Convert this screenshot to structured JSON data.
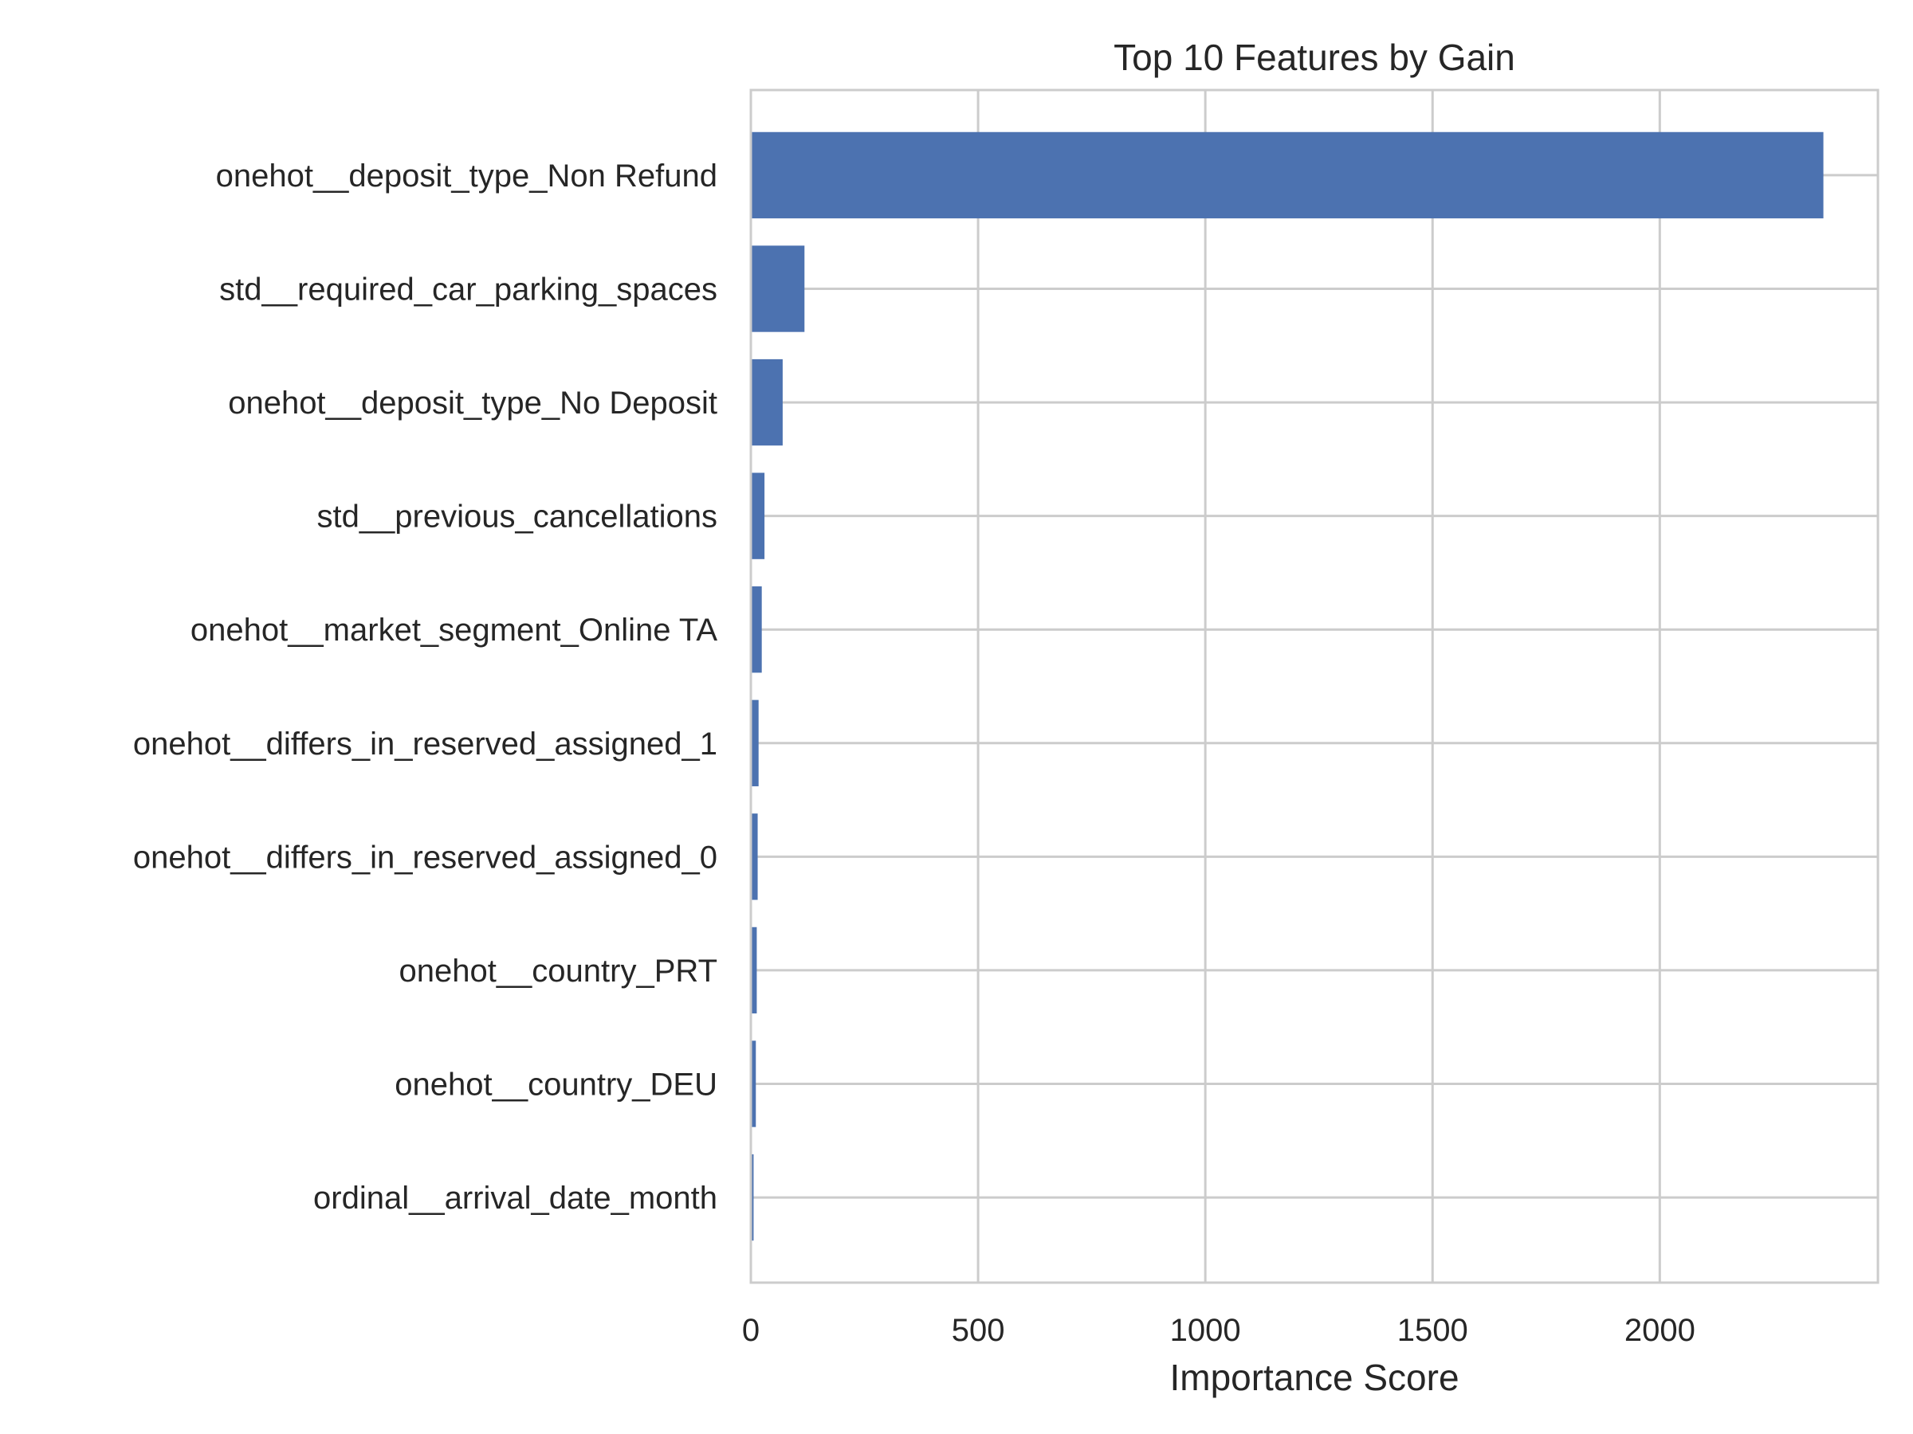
{
  "chart_data": {
    "type": "bar",
    "orientation": "horizontal",
    "title": "Top 10 Features by Gain",
    "xlabel": "Importance Score",
    "ylabel": "",
    "xlim": [
      0,
      2480
    ],
    "xticks": [
      0,
      500,
      1000,
      1500,
      2000
    ],
    "grid": true,
    "categories": [
      "onehot__deposit_type_Non Refund",
      "std__required_car_parking_spaces",
      "onehot__deposit_type_No Deposit",
      "std__previous_cancellations",
      "onehot__market_segment_Online TA",
      "onehot__differs_in_reserved_assigned_1",
      "onehot__differs_in_reserved_assigned_0",
      "onehot__country_PRT",
      "onehot__country_DEU",
      "ordinal__arrival_date_month"
    ],
    "values": [
      2360,
      118,
      70,
      30,
      24,
      17,
      15,
      13,
      11,
      6
    ],
    "colors": {
      "bar": "#4c72b0",
      "grid": "#cccccc",
      "spine": "#cccccc",
      "text": "#262626"
    }
  }
}
